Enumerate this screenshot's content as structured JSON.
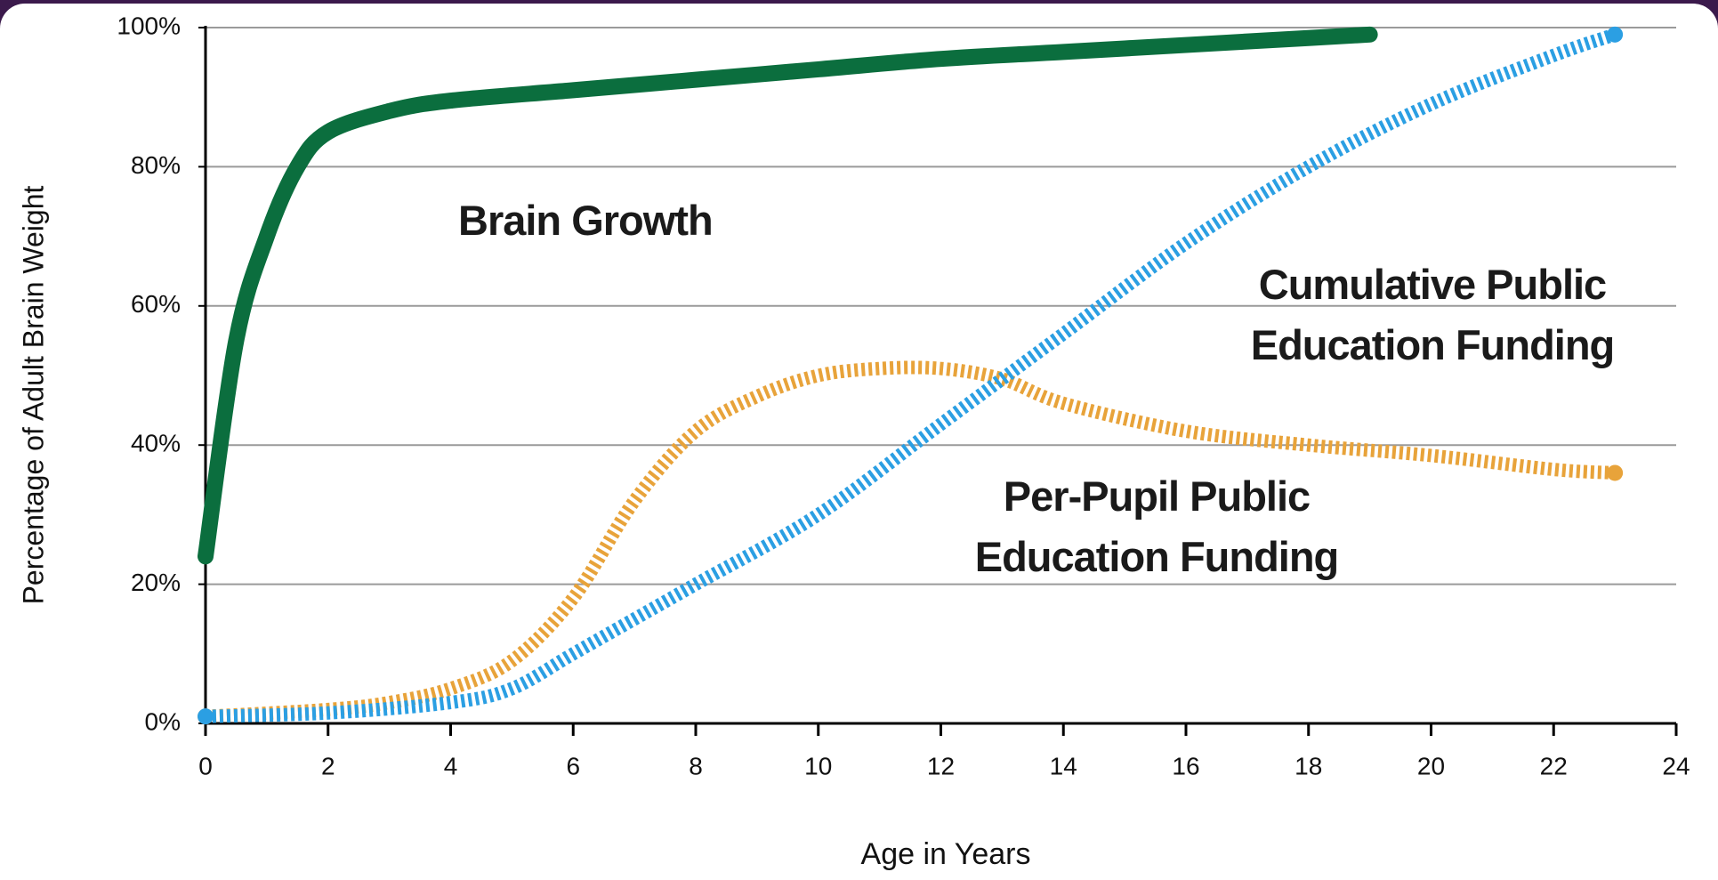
{
  "chart_data": {
    "type": "line",
    "xlabel": "Age in Years",
    "ylabel": "Percentage of Adult Brain Weight",
    "xlim": [
      0,
      24
    ],
    "xticks": [
      0,
      2,
      4,
      6,
      8,
      10,
      12,
      14,
      16,
      18,
      20,
      22,
      24
    ],
    "ylim": [
      0,
      100
    ],
    "yticks": [
      {
        "value": 0,
        "label": "0%"
      },
      {
        "value": 20,
        "label": "20%"
      },
      {
        "value": 40,
        "label": "40%"
      },
      {
        "value": 60,
        "label": "60%"
      },
      {
        "value": 80,
        "label": "80%"
      },
      {
        "value": 100,
        "label": "100%"
      }
    ],
    "grid": true,
    "series": [
      {
        "name": "Brain Growth",
        "color": "#0b6e3e",
        "style": "solid",
        "x": [
          0,
          0.5,
          1,
          1.5,
          2,
          3,
          4,
          6,
          8,
          10,
          12,
          14,
          16,
          18,
          19
        ],
        "values": [
          24,
          55,
          70,
          80,
          85,
          88,
          89.5,
          91,
          92.5,
          94,
          95.5,
          96.5,
          97.5,
          98.5,
          99
        ]
      },
      {
        "name": "Cumulative Public Education Funding",
        "color": "#2b9fe3",
        "style": "dotted",
        "x": [
          0,
          2,
          4,
          5,
          6,
          7,
          8,
          10,
          12,
          14,
          16,
          18,
          20,
          22,
          23
        ],
        "values": [
          1,
          1.5,
          3,
          5,
          10,
          15,
          20,
          30,
          43,
          56,
          69,
          80,
          89,
          96,
          99
        ]
      },
      {
        "name": "Per-Pupil Public Education Funding",
        "color": "#e8a33a",
        "style": "dotted",
        "x": [
          0,
          2,
          3,
          4,
          5,
          6,
          7,
          8,
          9,
          10,
          11,
          12,
          13,
          14,
          16,
          18,
          20,
          22,
          23
        ],
        "values": [
          1,
          2,
          3,
          5,
          9,
          18,
          32,
          42,
          47,
          50,
          51,
          51,
          49.5,
          46,
          42,
          40,
          38.5,
          36.5,
          36
        ]
      }
    ]
  }
}
